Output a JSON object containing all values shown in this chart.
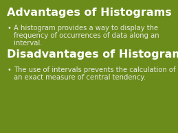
{
  "background_color": "#6b8c1a",
  "title1": "Advantages of Histograms",
  "title2": "Disadvantages of Histograms",
  "bullet1_line1": "A histogram provides a way to display the",
  "bullet1_line2": "frequency of occurrences of data along an",
  "bullet1_line3": "interval.",
  "bullet2_line1": "The use of intervals prevents the calculation of",
  "bullet2_line2": "an exact measure of central tendency.",
  "title_color": "#ffffff",
  "bullet_color": "#e8e8e8",
  "title_fontsize": 11.5,
  "bullet_fontsize": 7.2,
  "bullet_symbol": "•",
  "fig_width": 2.59,
  "fig_height": 1.94,
  "dpi": 100
}
